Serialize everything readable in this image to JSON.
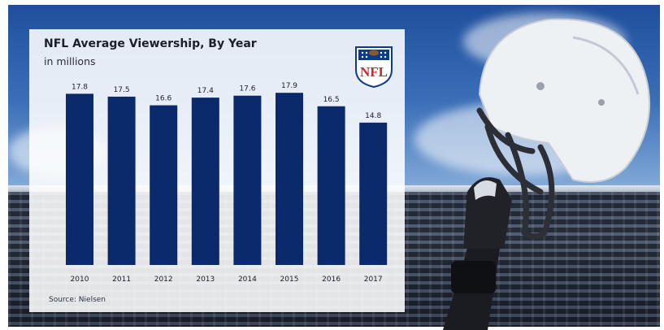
{
  "chart_data": {
    "type": "bar",
    "title": "NFL Average Viewership, By Year",
    "subtitle": "in millions",
    "categories": [
      "2010",
      "2011",
      "2012",
      "2013",
      "2014",
      "2015",
      "2016",
      "2017"
    ],
    "values": [
      17.8,
      17.5,
      16.6,
      17.4,
      17.6,
      17.9,
      16.5,
      14.8
    ],
    "data_labels": [
      "17.8",
      "17.5",
      "16.6",
      "17.4",
      "17.6",
      "17.9",
      "16.5",
      "14.8"
    ],
    "ylim": [
      0,
      18
    ],
    "grid": false,
    "bar_color": "#0a2a6b",
    "source": "Source: Nielsen"
  },
  "logo": {
    "text": "NFL",
    "icon": "nfl-shield-icon",
    "color_blue": "#0b3a8c",
    "color_red": "#d22630"
  },
  "background": {
    "icon": "football-helmet-stadium-photo"
  }
}
